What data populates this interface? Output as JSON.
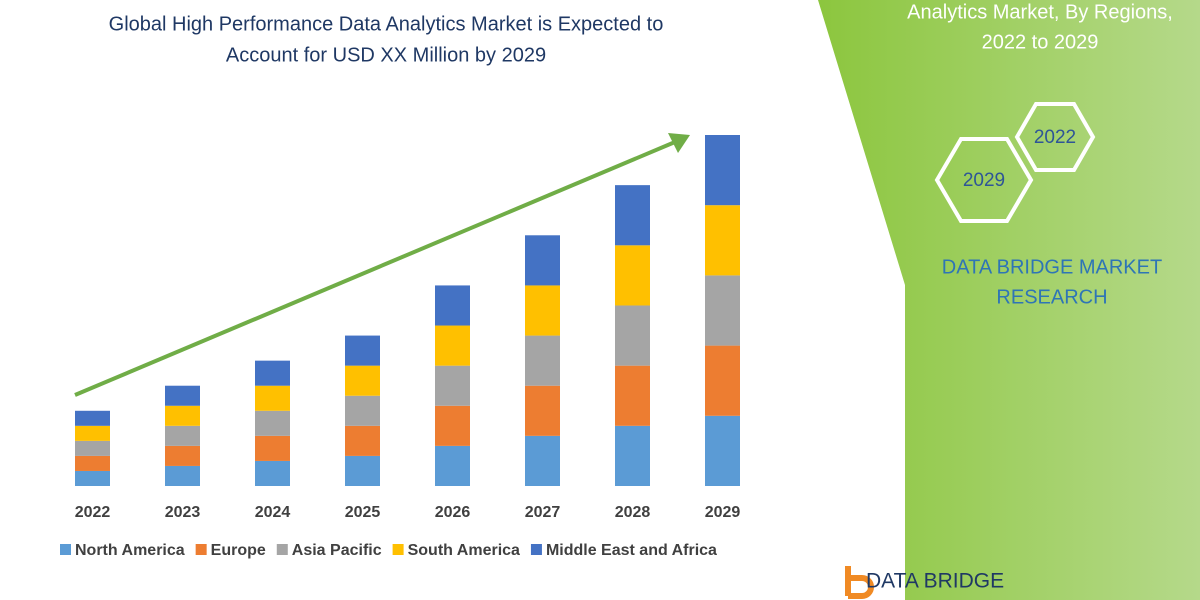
{
  "chart_data": {
    "type": "bar",
    "stacked": true,
    "title_lines": [
      "Global High Performance Data Analytics Market is Expected to",
      "Account for USD XX Million by 2029"
    ],
    "categories": [
      "2022",
      "2023",
      "2024",
      "2025",
      "2026",
      "2027",
      "2028",
      "2029"
    ],
    "series": [
      {
        "name": "North America",
        "color": "#5b9bd5",
        "values": [
          15,
          20,
          25,
          30,
          40,
          50,
          60,
          70
        ]
      },
      {
        "name": "Europe",
        "color": "#ed7d31",
        "values": [
          15,
          20,
          25,
          30,
          40,
          50,
          60,
          70
        ]
      },
      {
        "name": "Asia Pacific",
        "color": "#a5a5a5",
        "values": [
          15,
          20,
          25,
          30,
          40,
          50,
          60,
          70
        ]
      },
      {
        "name": "South America",
        "color": "#ffc000",
        "values": [
          15,
          20,
          25,
          30,
          40,
          50,
          60,
          70
        ]
      },
      {
        "name": "Middle East and Africa",
        "color": "#4472c4",
        "values": [
          15,
          20,
          25,
          30,
          40,
          50,
          60,
          70
        ]
      }
    ],
    "trend_color": "#70ad47"
  },
  "side_panel": {
    "title_lines": [
      "Analytics Market, By Regions,",
      "2022 to 2029"
    ],
    "hexagons": [
      "2022",
      "2029"
    ],
    "brand_lines": [
      "DATA BRIDGE MARKET",
      "RESEARCH"
    ],
    "logo": "DATA BRIDGE"
  }
}
